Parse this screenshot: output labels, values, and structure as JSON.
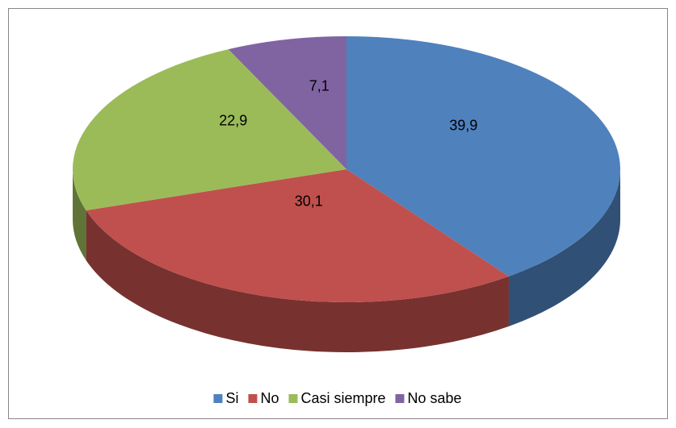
{
  "chart_data": {
    "type": "pie",
    "categories": [
      "Si",
      "No",
      "Casi siempre",
      "No sabe"
    ],
    "values": [
      39.9,
      30.1,
      22.9,
      7.1
    ],
    "value_labels": [
      "39,9",
      "30,1",
      "22,9",
      "7,1"
    ],
    "colors": [
      "#4f81bd",
      "#c0504d",
      "#9bbb59",
      "#8064a2"
    ],
    "legend": "bottom"
  }
}
